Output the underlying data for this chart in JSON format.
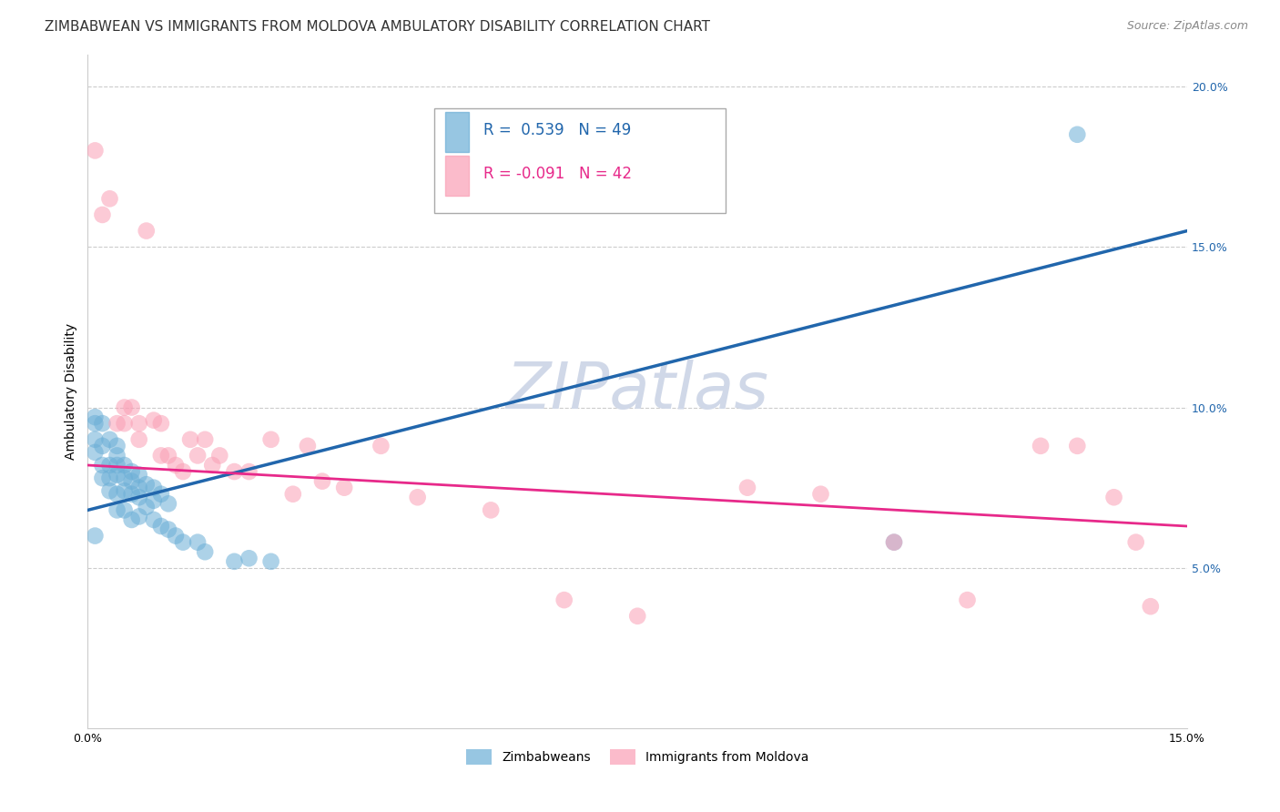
{
  "title": "ZIMBABWEAN VS IMMIGRANTS FROM MOLDOVA AMBULATORY DISABILITY CORRELATION CHART",
  "source": "Source: ZipAtlas.com",
  "ylabel": "Ambulatory Disability",
  "watermark": "ZIPatlas",
  "legend_blue_r": "0.539",
  "legend_blue_n": "49",
  "legend_pink_r": "-0.091",
  "legend_pink_n": "42",
  "blue_label": "Zimbabweans",
  "pink_label": "Immigrants from Moldova",
  "xlim": [
    0,
    0.15
  ],
  "ylim": [
    0,
    0.21
  ],
  "blue_color": "#6baed6",
  "pink_color": "#fa9fb5",
  "blue_line_color": "#2166ac",
  "pink_line_color": "#e7298a",
  "grid_color": "#cccccc",
  "background_color": "#ffffff",
  "title_fontsize": 11,
  "source_fontsize": 9,
  "axis_fontsize": 9,
  "legend_fontsize": 11,
  "watermark_color": "#d0d8e8",
  "watermark_fontsize": 52,
  "blue_scatter_x": [
    0.001,
    0.001,
    0.001,
    0.001,
    0.001,
    0.002,
    0.002,
    0.002,
    0.002,
    0.003,
    0.003,
    0.003,
    0.003,
    0.004,
    0.004,
    0.004,
    0.004,
    0.004,
    0.004,
    0.005,
    0.005,
    0.005,
    0.005,
    0.006,
    0.006,
    0.006,
    0.006,
    0.007,
    0.007,
    0.007,
    0.007,
    0.008,
    0.008,
    0.009,
    0.009,
    0.009,
    0.01,
    0.01,
    0.011,
    0.011,
    0.012,
    0.013,
    0.015,
    0.016,
    0.02,
    0.022,
    0.025,
    0.11,
    0.135
  ],
  "blue_scatter_y": [
    0.095,
    0.097,
    0.09,
    0.086,
    0.06,
    0.095,
    0.088,
    0.082,
    0.078,
    0.09,
    0.082,
    0.078,
    0.074,
    0.088,
    0.085,
    0.082,
    0.079,
    0.073,
    0.068,
    0.082,
    0.078,
    0.074,
    0.068,
    0.08,
    0.077,
    0.073,
    0.065,
    0.079,
    0.075,
    0.072,
    0.066,
    0.076,
    0.069,
    0.075,
    0.071,
    0.065,
    0.073,
    0.063,
    0.07,
    0.062,
    0.06,
    0.058,
    0.058,
    0.055,
    0.052,
    0.053,
    0.052,
    0.058,
    0.185
  ],
  "pink_scatter_x": [
    0.001,
    0.002,
    0.003,
    0.004,
    0.005,
    0.005,
    0.006,
    0.007,
    0.007,
    0.008,
    0.009,
    0.01,
    0.01,
    0.011,
    0.012,
    0.013,
    0.014,
    0.015,
    0.016,
    0.017,
    0.018,
    0.02,
    0.022,
    0.025,
    0.028,
    0.03,
    0.032,
    0.035,
    0.04,
    0.045,
    0.055,
    0.065,
    0.075,
    0.09,
    0.1,
    0.11,
    0.12,
    0.13,
    0.135,
    0.14,
    0.143,
    0.145
  ],
  "pink_scatter_y": [
    0.18,
    0.16,
    0.165,
    0.095,
    0.095,
    0.1,
    0.1,
    0.09,
    0.095,
    0.155,
    0.096,
    0.095,
    0.085,
    0.085,
    0.082,
    0.08,
    0.09,
    0.085,
    0.09,
    0.082,
    0.085,
    0.08,
    0.08,
    0.09,
    0.073,
    0.088,
    0.077,
    0.075,
    0.088,
    0.072,
    0.068,
    0.04,
    0.035,
    0.075,
    0.073,
    0.058,
    0.04,
    0.088,
    0.088,
    0.072,
    0.058,
    0.038
  ]
}
